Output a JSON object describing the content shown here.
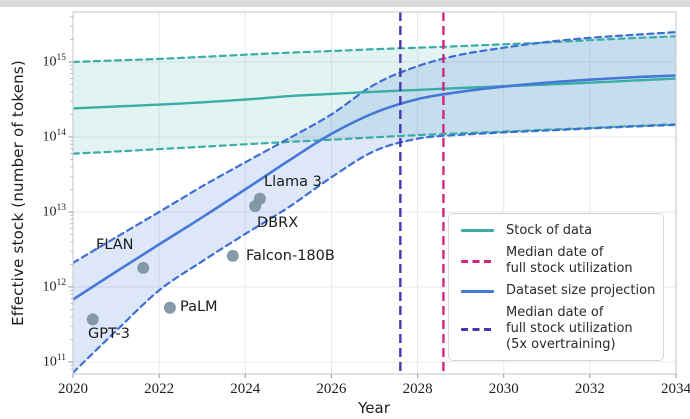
{
  "figure": {
    "kind": "line chart with confidence bands",
    "background": "#ffffff"
  },
  "chart_data": {
    "type": "line",
    "title": "",
    "xlabel": "Year",
    "ylabel": "Effective stock (number of tokens)",
    "x_range": [
      2020,
      2034
    ],
    "x_ticks": [
      2020,
      2022,
      2024,
      2026,
      2028,
      2030,
      2032,
      2034
    ],
    "y_scale": "log",
    "y_tick_exponents": [
      11,
      12,
      13,
      14,
      15
    ],
    "y_range": [
      74000000000.0,
      4700000000000000.0
    ],
    "grid": true,
    "years": [
      2020,
      2021,
      2022,
      2023,
      2024,
      2025,
      2026,
      2027,
      2028,
      2029,
      2030,
      2031,
      2032,
      2033,
      2034
    ],
    "series": [
      {
        "name": "Stock of data (median)",
        "color": "#3aada6",
        "style": "solid",
        "width": 2.4,
        "values": [
          240000000000000.0,
          255000000000000.0,
          270000000000000.0,
          290000000000000.0,
          315000000000000.0,
          350000000000000.0,
          375000000000000.0,
          400000000000000.0,
          425000000000000.0,
          450000000000000.0,
          475000000000000.0,
          500000000000000.0,
          530000000000000.0,
          565000000000000.0,
          600000000000000.0
        ]
      },
      {
        "name": "Stock of data (CI upper)",
        "color": "#3aada6",
        "style": "dashed",
        "width": 2.2,
        "values": [
          1000000000000000.0,
          1050000000000000.0,
          1100000000000000.0,
          1170000000000000.0,
          1250000000000000.0,
          1330000000000000.0,
          1400000000000000.0,
          1480000000000000.0,
          1550000000000000.0,
          1630000000000000.0,
          1720000000000000.0,
          1820000000000000.0,
          1950000000000000.0,
          2080000000000000.0,
          2200000000000000.0
        ]
      },
      {
        "name": "Stock of data (CI lower)",
        "color": "#3aada6",
        "style": "dashed",
        "width": 2.2,
        "values": [
          60000000000000.0,
          64000000000000.0,
          69000000000000.0,
          74000000000000.0,
          80000000000000.0,
          86000000000000.0,
          92000000000000.0,
          99000000000000.0,
          106000000000000.0,
          112000000000000.0,
          118000000000000.0,
          125000000000000.0,
          132000000000000.0,
          140000000000000.0,
          148000000000000.0
        ]
      },
      {
        "name": "Dataset size projection (median)",
        "color": "#4479d9",
        "style": "solid",
        "width": 2.6,
        "values": [
          680000000000.0,
          1600000000000.0,
          3700000000000.0,
          8500000000000.0,
          20000000000000.0,
          48000000000000.0,
          110000000000000.0,
          210000000000000.0,
          320000000000000.0,
          400000000000000.0,
          470000000000000.0,
          530000000000000.0,
          580000000000000.0,
          625000000000000.0,
          660000000000000.0
        ]
      },
      {
        "name": "Dataset size projection (CI upper)",
        "color": "#3d6fd2",
        "style": "dashed",
        "width": 2.2,
        "values": [
          2100000000000.0,
          4600000000000.0,
          10000000000000.0,
          22000000000000.0,
          46000000000000.0,
          95000000000000.0,
          200000000000000.0,
          500000000000000.0,
          880000000000000.0,
          1250000000000000.0,
          1550000000000000.0,
          1850000000000000.0,
          2100000000000000.0,
          2300000000000000.0,
          2500000000000000.0
        ]
      },
      {
        "name": "Dataset size projection (CI lower)",
        "color": "#3d6fd2",
        "style": "dashed",
        "width": 2.2,
        "values": [
          72000000000.0,
          260000000000.0,
          900000000000.0,
          2200000000000.0,
          5100000000000.0,
          11500000000000.0,
          29000000000000.0,
          65000000000000.0,
          95000000000000.0,
          107000000000000.0,
          115000000000000.0,
          122000000000000.0,
          130000000000000.0,
          138000000000000.0,
          145000000000000.0
        ]
      }
    ],
    "bands": [
      {
        "name": "stock-of-data-ci",
        "upper": 1,
        "lower": 2,
        "fill": "rgba(58,173,166,0.15)"
      },
      {
        "name": "dataset-projection-ci",
        "upper": 4,
        "lower": 5,
        "fill": "rgba(70,122,216,0.18)"
      }
    ],
    "vlines": [
      {
        "name": "Median date of full stock utilization (5x overtraining)",
        "x": 2027.6,
        "color": "#4837b5"
      },
      {
        "name": "Median date of full stock utilization",
        "x": 2028.6,
        "color": "#d4267e"
      }
    ],
    "points": [
      {
        "label": "GPT-3",
        "x": 2020.46,
        "y": 370000000000.0
      },
      {
        "label": "FLAN",
        "x": 2021.63,
        "y": 1800000000000.0
      },
      {
        "label": "PaLM",
        "x": 2022.25,
        "y": 530000000000.0
      },
      {
        "label": "Falcon-180B",
        "x": 2023.71,
        "y": 2600000000000.0
      },
      {
        "label": "DBRX",
        "x": 2024.23,
        "y": 12000000000000.0
      },
      {
        "label": "Llama 3",
        "x": 2024.34,
        "y": 15000000000000.0
      }
    ],
    "point_color": "#7d95a5",
    "legend": {
      "position": "lower right",
      "entries": [
        {
          "lines": [
            "Stock of data"
          ],
          "color": "#3aada6",
          "dash": false
        },
        {
          "lines": [
            "Median date of",
            "full stock utilization"
          ],
          "color": "#d4267e",
          "dash": true
        },
        {
          "lines": [
            "Dataset size projection"
          ],
          "color": "#4479d9",
          "dash": false
        },
        {
          "lines": [
            "Median date of",
            "full stock utilization",
            "(5x overtraining)"
          ],
          "color": "#4837b5",
          "dash": true
        }
      ]
    },
    "colors": {
      "grid": "#e9e9ee",
      "spine": "#cbced6",
      "tick": "#9aa0a8",
      "text": "#1f1f1f"
    }
  }
}
